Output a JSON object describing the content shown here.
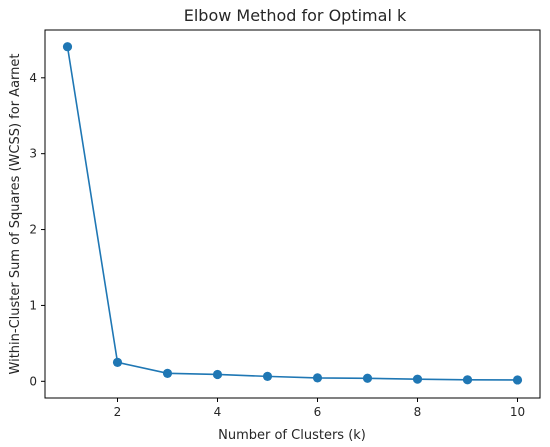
{
  "chart_data": {
    "type": "line",
    "title": "Elbow Method for Optimal k",
    "xlabel": "Number of Clusters (k)",
    "ylabel": "Within-Cluster Sum of Squares (WCSS) for Aarnet",
    "x": [
      1,
      2,
      3,
      4,
      5,
      6,
      7,
      8,
      9,
      10
    ],
    "series": [
      {
        "values": [
          4.41,
          0.25,
          0.105,
          0.09,
          0.065,
          0.045,
          0.04,
          0.028,
          0.02,
          0.018
        ]
      }
    ],
    "xlim": [
      0.55,
      10.45
    ],
    "ylim": [
      -0.22,
      4.63
    ],
    "xticks": [
      2,
      4,
      6,
      8,
      10
    ],
    "yticks": [
      0,
      1,
      2,
      3,
      4
    ],
    "grid": false,
    "marker": "circle",
    "color": "#1f77b4"
  }
}
